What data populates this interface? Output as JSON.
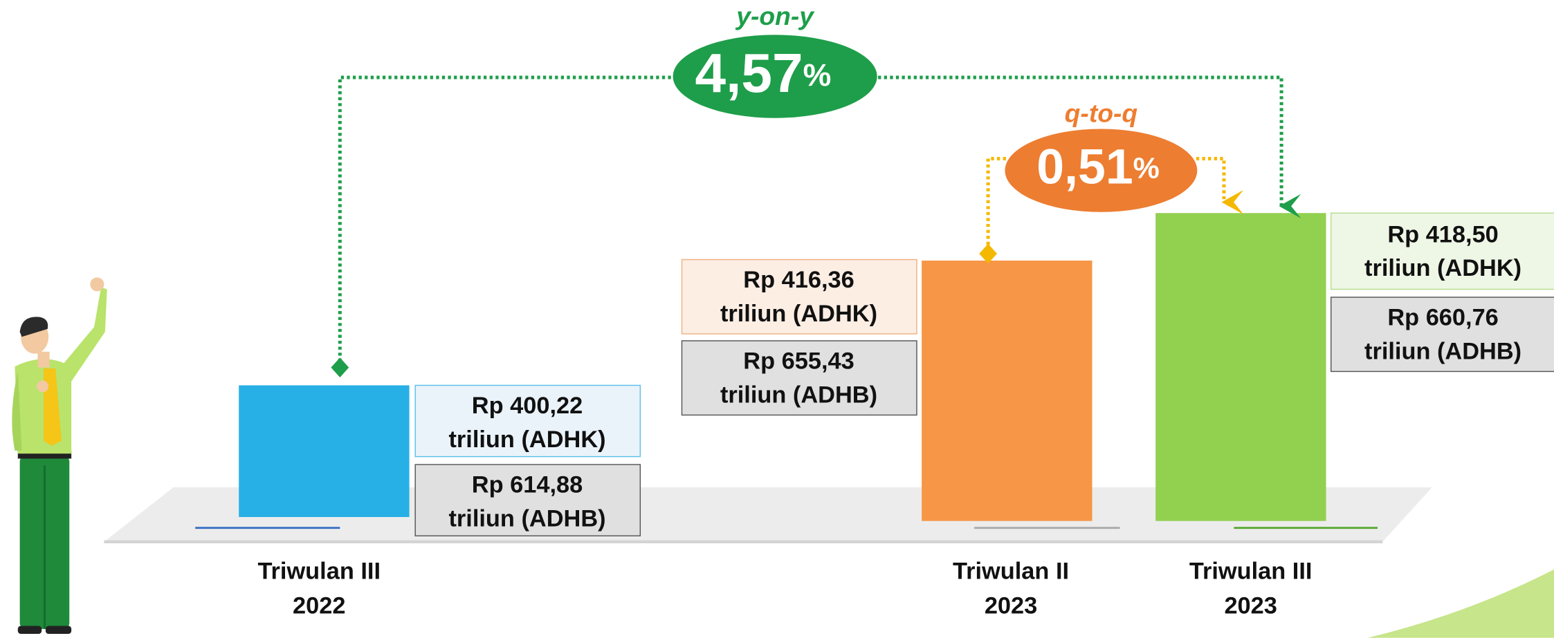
{
  "badges": [
    {
      "label": "y-on-y",
      "value": "4,57",
      "unit": "%"
    },
    {
      "label": "q-to-q",
      "value": "0,51",
      "unit": "%"
    }
  ],
  "bars": [
    {
      "category": [
        "Triwulan III",
        "2022"
      ],
      "adhk": [
        "Rp 400,22",
        "triliun (ADHK)"
      ],
      "adhb": [
        "Rp 614,88",
        "triliun (ADHB)"
      ]
    },
    {
      "category": [
        "Triwulan II",
        "2023"
      ],
      "adhk": [
        "Rp 416,36",
        "triliun (ADHK)"
      ],
      "adhb": [
        "Rp 655,43",
        "triliun (ADHB)"
      ]
    },
    {
      "category": [
        "Triwulan III",
        "2023"
      ],
      "adhk": [
        "Rp 418,50",
        "triliun (ADHK)"
      ],
      "adhb": [
        "Rp 660,76",
        "triliun (ADHB)"
      ]
    }
  ]
}
